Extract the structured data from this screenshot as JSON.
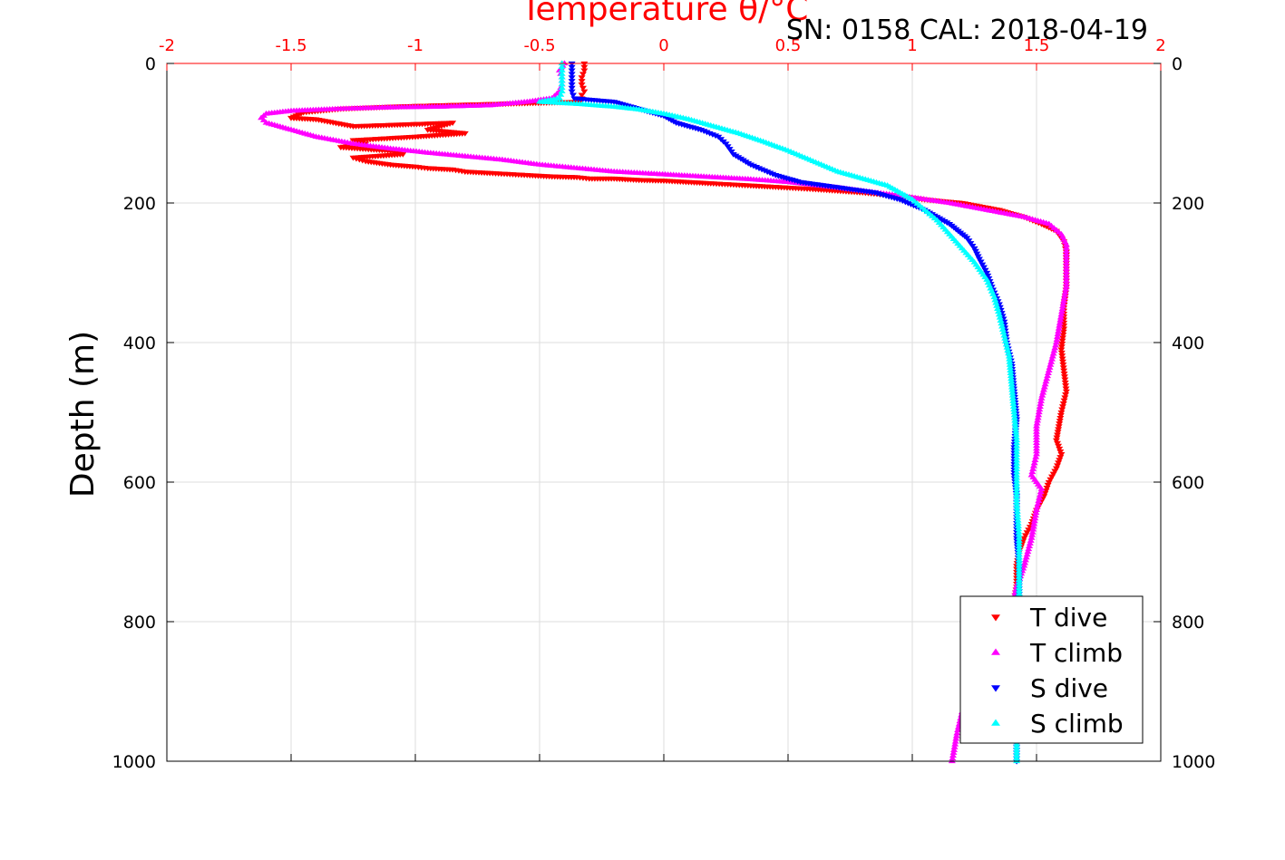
{
  "chart_data": {
    "type": "scatter",
    "top_title": "Temperature θ/°C",
    "subtitle": "SN: 0158  CAL: 2018-04-19",
    "ylabel": "Depth (m)",
    "xlim": [
      -2,
      2
    ],
    "ylim": [
      0,
      1000
    ],
    "y_reversed": true,
    "grid": true,
    "x_ticks": [
      -2,
      -1.5,
      -1,
      -0.5,
      0,
      0.5,
      1,
      1.5,
      2
    ],
    "x_tick_labels": [
      "-2",
      "-1.5",
      "-1",
      "-0.5",
      "0",
      "0.5",
      "1",
      "1.5",
      "2"
    ],
    "y_ticks": [
      0,
      200,
      400,
      600,
      800,
      1000
    ],
    "y_tick_labels": [
      "0",
      "200",
      "400",
      "600",
      "800",
      "1000"
    ],
    "legend_position": "bottom-right",
    "colors": {
      "axis_top": "#ff0000",
      "axis_other": "#000000",
      "grid": "#dddddd",
      "T_dive": "#ff0000",
      "T_climb": "#ff00ff",
      "S_dive": "#0000ff",
      "S_climb": "#00ffff"
    },
    "series": [
      {
        "name": "T dive",
        "marker": "triangle-down",
        "color": "#ff0000",
        "x": [
          -0.32,
          -0.32,
          -0.33,
          -0.33,
          -0.32,
          -0.33,
          -0.33,
          -0.34,
          -0.9,
          -1.1,
          -1.3,
          -1.45,
          -1.5,
          -1.4,
          -1.25,
          -0.85,
          -0.95,
          -0.8,
          -1.0,
          -1.25,
          -1.2,
          -1.3,
          -1.1,
          -1.05,
          -1.25,
          -1.2,
          -1.1,
          -1.0,
          -0.95,
          -0.85,
          -0.8,
          -0.7,
          -0.55,
          -0.45,
          -0.35,
          -0.3,
          -0.2,
          -0.1,
          0.0,
          0.1,
          0.2,
          0.35,
          0.45,
          0.6,
          0.8,
          0.95,
          1.05,
          1.2,
          1.35,
          1.45,
          1.52,
          1.58,
          1.61,
          1.62,
          1.62,
          1.62,
          1.61,
          1.61,
          1.6,
          1.61,
          1.62,
          1.6,
          1.59,
          1.58,
          1.6,
          1.58,
          1.55,
          1.53,
          1.5,
          1.48,
          1.45,
          1.43,
          1.42,
          1.42,
          1.41
        ],
        "y": [
          0,
          10,
          20,
          30,
          40,
          45,
          50,
          55,
          60,
          62,
          65,
          70,
          78,
          80,
          90,
          85,
          95,
          100,
          105,
          110,
          115,
          120,
          125,
          130,
          135,
          140,
          145,
          148,
          150,
          152,
          155,
          157,
          160,
          162,
          163,
          165,
          165,
          167,
          168,
          170,
          172,
          175,
          177,
          180,
          185,
          190,
          195,
          200,
          210,
          220,
          230,
          240,
          255,
          270,
          290,
          320,
          350,
          380,
          410,
          440,
          470,
          500,
          520,
          540,
          560,
          580,
          600,
          620,
          640,
          660,
          680,
          700,
          720,
          750,
          770
        ]
      },
      {
        "name": "T climb",
        "marker": "triangle-up",
        "color": "#ff00ff",
        "x": [
          -0.4,
          -0.42,
          -0.41,
          -0.41,
          -0.42,
          -0.45,
          -0.55,
          -0.7,
          -0.9,
          -1.1,
          -1.3,
          -1.5,
          -1.6,
          -1.62,
          -1.6,
          -1.5,
          -1.4,
          -1.25,
          -1.1,
          -0.95,
          -0.8,
          -0.65,
          -0.5,
          -0.35,
          -0.2,
          -0.05,
          0.15,
          0.35,
          0.5,
          0.7,
          0.85,
          1.0,
          1.15,
          1.3,
          1.45,
          1.55,
          1.6,
          1.62,
          1.62,
          1.62,
          1.6,
          1.58,
          1.55,
          1.52,
          1.5,
          1.5,
          1.48,
          1.52,
          1.5,
          1.48,
          1.45,
          1.42,
          1.4,
          1.35,
          1.3,
          1.25,
          1.2,
          1.18,
          1.17,
          1.16
        ],
        "y": [
          0,
          10,
          20,
          30,
          40,
          50,
          55,
          60,
          62,
          63,
          65,
          68,
          72,
          78,
          85,
          95,
          105,
          115,
          122,
          128,
          133,
          138,
          145,
          150,
          155,
          158,
          162,
          166,
          170,
          178,
          185,
          192,
          200,
          210,
          220,
          230,
          245,
          260,
          290,
          320,
          360,
          400,
          440,
          480,
          520,
          560,
          590,
          610,
          640,
          680,
          720,
          750,
          780,
          800,
          850,
          900,
          930,
          960,
          980,
          1000
        ]
      },
      {
        "name": "S dive",
        "marker": "triangle-down",
        "color": "#0000ff",
        "x": [
          -0.37,
          -0.37,
          -0.37,
          -0.37,
          -0.37,
          -0.36,
          -0.2,
          -0.1,
          0.0,
          0.05,
          0.15,
          0.22,
          0.25,
          0.28,
          0.35,
          0.45,
          0.55,
          0.65,
          0.75,
          0.85,
          0.95,
          1.05,
          1.15,
          1.22,
          1.25,
          1.27,
          1.3,
          1.32,
          1.35,
          1.37,
          1.38,
          1.4,
          1.41,
          1.42,
          1.41,
          1.41,
          1.42,
          1.42,
          1.42,
          1.43,
          1.43,
          1.42,
          1.42,
          1.42,
          1.42
        ],
        "y": [
          0,
          10,
          20,
          30,
          40,
          50,
          55,
          65,
          75,
          85,
          95,
          105,
          115,
          130,
          145,
          160,
          170,
          175,
          180,
          185,
          195,
          210,
          230,
          250,
          265,
          280,
          300,
          320,
          345,
          370,
          400,
          430,
          470,
          510,
          550,
          590,
          620,
          650,
          680,
          720,
          760,
          800,
          880,
          950,
          1000
        ]
      },
      {
        "name": "S climb",
        "marker": "triangle-up",
        "color": "#00ffff",
        "x": [
          -0.41,
          -0.41,
          -0.41,
          -0.41,
          -0.41,
          -0.42,
          -0.5,
          -0.35,
          -0.2,
          -0.1,
          0.0,
          0.1,
          0.2,
          0.3,
          0.4,
          0.5,
          0.6,
          0.7,
          0.8,
          0.9,
          0.95,
          1.0,
          1.05,
          1.1,
          1.15,
          1.2,
          1.25,
          1.3,
          1.33,
          1.35,
          1.37,
          1.39,
          1.4,
          1.41,
          1.42,
          1.42,
          1.42,
          1.43,
          1.43,
          1.43,
          1.42,
          1.42
        ],
        "y": [
          0,
          10,
          20,
          30,
          40,
          50,
          55,
          58,
          62,
          66,
          72,
          80,
          90,
          100,
          112,
          125,
          140,
          155,
          165,
          175,
          185,
          195,
          210,
          225,
          245,
          265,
          285,
          310,
          335,
          360,
          390,
          420,
          460,
          500,
          540,
          590,
          630,
          680,
          720,
          780,
          900,
          1000
        ]
      }
    ]
  }
}
